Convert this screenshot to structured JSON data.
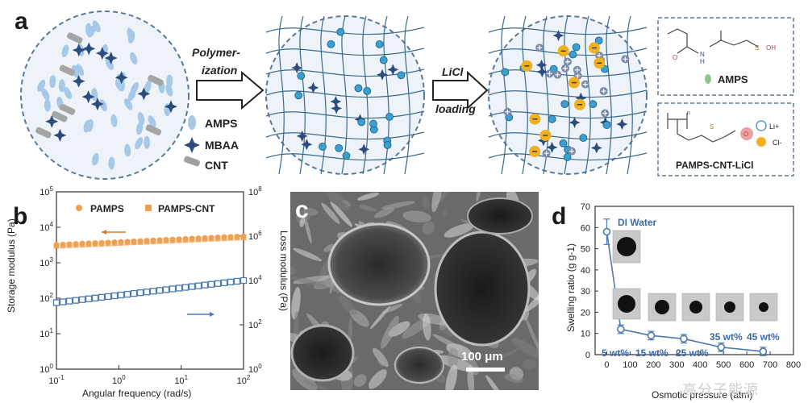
{
  "panels": {
    "a": "a",
    "b": "b",
    "c": "c",
    "d": "d"
  },
  "panel_a": {
    "step1_label_line1": "Polymer-",
    "step1_label_line2": "ization",
    "step2_label_line1": "LiCl",
    "step2_label_line2": "loading",
    "legend": {
      "amps": "AMPS",
      "mbaa": "MBAA",
      "cnt": "CNT"
    },
    "structure_boxes": {
      "amps_caption": "AMPS",
      "salt_caption": "PAMPS-CNT-LiCl",
      "oh_label": "OH",
      "o_label": "O",
      "n_label": "N",
      "h_label": "H",
      "s_label": "S",
      "subscript_n": "n",
      "li_label": "Li+",
      "cl_label": "Cl-"
    },
    "colors": {
      "amps_blue": "#a8c8e8",
      "mbaa_navy": "#2c4c7c",
      "cnt_gray": "#9a9a9a",
      "network_line": "#3a6a8a",
      "li_orange": "#f0b020",
      "circle_border": "#5a7a9a"
    }
  },
  "chart_data": [
    {
      "type": "scatter",
      "panel": "b",
      "xlabel": "Angular frequency (rad/s)",
      "ylabel": "Storage modulus (Pa)",
      "y2label": "Loss modulus (Pa)",
      "xscale": "log",
      "yscale": "log",
      "xlim": [
        0.1,
        100
      ],
      "ylim": [
        1,
        100000
      ],
      "y2lim": [
        1,
        100000000
      ],
      "x_ticks": [
        "10-1",
        "100",
        "101",
        "102"
      ],
      "y_ticks": [
        "100",
        "101",
        "102",
        "103",
        "104",
        "105"
      ],
      "y2_ticks": [
        "100",
        "102",
        "104",
        "106",
        "108"
      ],
      "legend": [
        "PAMPS",
        "PAMPS-CNT"
      ],
      "legend_position": "top",
      "series": [
        {
          "name": "PAMPS-CNT",
          "axis": "left",
          "color": "#f0a050",
          "marker": "filled-square",
          "x_range": [
            0.1,
            100
          ],
          "y_start": 3000,
          "y_end": 5200
        },
        {
          "name": "PAMPS",
          "axis": "left",
          "color": "#f0a050",
          "marker": "circle",
          "x_range": [
            0.1,
            100
          ],
          "y_start": 3200,
          "y_end": 5600
        },
        {
          "name": "Loss modulus",
          "axis": "right",
          "color": "#4a7ab0",
          "marker": "open-square",
          "x_range": [
            0.1,
            100
          ],
          "y_start": 1000,
          "y_end": 10000
        }
      ]
    },
    {
      "type": "scatter",
      "panel": "d",
      "xlabel": "Osmotic pressure (atm)",
      "ylabel": "Swelling ratio (g g-1)",
      "xlim": [
        -50,
        800
      ],
      "ylim": [
        0,
        70
      ],
      "x_ticks": [
        0,
        100,
        200,
        300,
        400,
        500,
        600,
        700,
        800
      ],
      "y_ticks": [
        0,
        10,
        20,
        30,
        40,
        50,
        60,
        70
      ],
      "series": [
        {
          "name": "",
          "color": "#4a7ab0",
          "points": [
            {
              "x": 0,
              "y": 58,
              "err": 6
            },
            {
              "x": 60,
              "y": 12,
              "err": 2
            },
            {
              "x": 190,
              "y": 9,
              "err": 2
            },
            {
              "x": 330,
              "y": 7.5,
              "err": 2
            },
            {
              "x": 490,
              "y": 3.5,
              "err": 2
            },
            {
              "x": 670,
              "y": 1.5,
              "err": 2
            }
          ]
        }
      ],
      "annotations": [
        "DI Water",
        "5 wt%",
        "15 wt%",
        "25 wt%",
        "35 wt%",
        "45 wt%"
      ]
    }
  ],
  "panel_c": {
    "scale_bar_label": "100 μm"
  },
  "watermark": "高分子能源"
}
